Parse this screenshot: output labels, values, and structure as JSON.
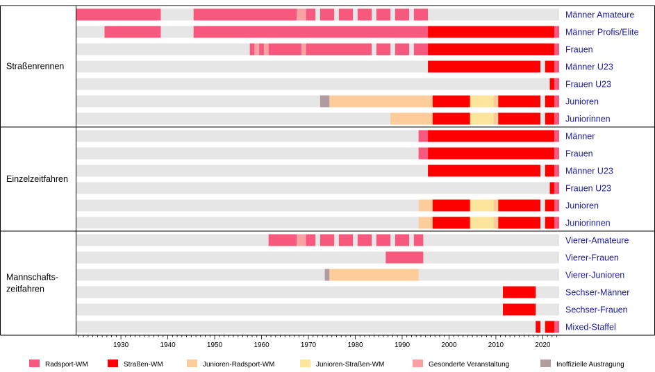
{
  "chart_data": {
    "type": "timeline",
    "x_range": [
      1921,
      2024
    ],
    "x_ticks": [
      1930,
      1940,
      1950,
      1960,
      1970,
      1980,
      1990,
      2000,
      2010,
      2020
    ],
    "colors": {
      "radsport": "#f7587e",
      "strassen": "#fe0000",
      "jun_radsport": "#fdcc9a",
      "jun_strassen": "#fde59c",
      "gesondert": "#f9a1a3",
      "inoffiziell": "#b39c9f",
      "none": "#e6e6e6"
    },
    "legend": [
      {
        "key": "radsport",
        "label": "Radsport-WM"
      },
      {
        "key": "strassen",
        "label": "Straßen-WM"
      },
      {
        "key": "jun_radsport",
        "label": "Junioren-Radsport-WM"
      },
      {
        "key": "jun_strassen",
        "label": "Junioren-Straßen-WM"
      },
      {
        "key": "gesondert",
        "label": "Gesonderte Veranstaltung"
      },
      {
        "key": "inoffiziell",
        "label": "Inoffizielle Austragung"
      }
    ],
    "groups": [
      {
        "label": "Straßenrennen",
        "rows": [
          {
            "label": "Männer Amateure",
            "segments": [
              {
                "from": 1921,
                "to": 1939,
                "color": "radsport"
              },
              {
                "from": 1946,
                "to": 1968,
                "color": "radsport"
              },
              {
                "from": 1968,
                "to": 1970,
                "color": "gesondert"
              },
              {
                "from": 1970,
                "to": 1972,
                "color": "radsport"
              },
              {
                "from": 1973,
                "to": 1976,
                "color": "radsport"
              },
              {
                "from": 1977,
                "to": 1980,
                "color": "radsport"
              },
              {
                "from": 1981,
                "to": 1984,
                "color": "radsport"
              },
              {
                "from": 1985,
                "to": 1988,
                "color": "radsport"
              },
              {
                "from": 1989,
                "to": 1992,
                "color": "radsport"
              },
              {
                "from": 1993,
                "to": 1996,
                "color": "radsport"
              }
            ]
          },
          {
            "label": "Männer Profis/Elite",
            "segments": [
              {
                "from": 1927,
                "to": 1939,
                "color": "radsport"
              },
              {
                "from": 1946,
                "to": 1996,
                "color": "radsport"
              },
              {
                "from": 1996,
                "to": 2023,
                "color": "strassen"
              },
              {
                "from": 2023,
                "to": 2024,
                "color": "radsport"
              }
            ]
          },
          {
            "label": "Frauen",
            "segments": [
              {
                "from": 1958,
                "to": 1959,
                "color": "radsport"
              },
              {
                "from": 1959,
                "to": 1960,
                "color": "gesondert"
              },
              {
                "from": 1960,
                "to": 1961,
                "color": "radsport"
              },
              {
                "from": 1961,
                "to": 1962,
                "color": "gesondert"
              },
              {
                "from": 1962,
                "to": 1969,
                "color": "radsport"
              },
              {
                "from": 1969,
                "to": 1970,
                "color": "gesondert"
              },
              {
                "from": 1970,
                "to": 1984,
                "color": "radsport"
              },
              {
                "from": 1985,
                "to": 1988,
                "color": "radsport"
              },
              {
                "from": 1989,
                "to": 1992,
                "color": "radsport"
              },
              {
                "from": 1993,
                "to": 1996,
                "color": "radsport"
              },
              {
                "from": 1996,
                "to": 2023,
                "color": "strassen"
              },
              {
                "from": 2023,
                "to": 2024,
                "color": "radsport"
              }
            ]
          },
          {
            "label": "Männer U23",
            "segments": [
              {
                "from": 1996,
                "to": 2020,
                "color": "strassen"
              },
              {
                "from": 2021,
                "to": 2023,
                "color": "strassen"
              },
              {
                "from": 2023,
                "to": 2024,
                "color": "radsport"
              }
            ]
          },
          {
            "label": "Frauen U23",
            "segments": [
              {
                "from": 2022,
                "to": 2023,
                "color": "strassen"
              },
              {
                "from": 2023,
                "to": 2024,
                "color": "radsport"
              }
            ]
          },
          {
            "label": "Junioren",
            "segments": [
              {
                "from": 1973,
                "to": 1975,
                "color": "inoffiziell"
              },
              {
                "from": 1975,
                "to": 1997,
                "color": "jun_radsport"
              },
              {
                "from": 1997,
                "to": 2005,
                "color": "strassen"
              },
              {
                "from": 2005,
                "to": 2010,
                "color": "jun_strassen"
              },
              {
                "from": 2010,
                "to": 2011,
                "color": "jun_radsport"
              },
              {
                "from": 2011,
                "to": 2020,
                "color": "strassen"
              },
              {
                "from": 2021,
                "to": 2023,
                "color": "strassen"
              },
              {
                "from": 2023,
                "to": 2024,
                "color": "radsport"
              }
            ]
          },
          {
            "label": "Juniorinnen",
            "segments": [
              {
                "from": 1988,
                "to": 1997,
                "color": "jun_radsport"
              },
              {
                "from": 1997,
                "to": 2005,
                "color": "strassen"
              },
              {
                "from": 2005,
                "to": 2010,
                "color": "jun_strassen"
              },
              {
                "from": 2010,
                "to": 2011,
                "color": "jun_radsport"
              },
              {
                "from": 2011,
                "to": 2020,
                "color": "strassen"
              },
              {
                "from": 2021,
                "to": 2023,
                "color": "strassen"
              },
              {
                "from": 2023,
                "to": 2024,
                "color": "radsport"
              }
            ]
          }
        ]
      },
      {
        "label": "Einzelzeitfahren",
        "rows": [
          {
            "label": "Männer",
            "segments": [
              {
                "from": 1994,
                "to": 1996,
                "color": "radsport"
              },
              {
                "from": 1996,
                "to": 2023,
                "color": "strassen"
              },
              {
                "from": 2023,
                "to": 2024,
                "color": "radsport"
              }
            ]
          },
          {
            "label": "Frauen",
            "segments": [
              {
                "from": 1994,
                "to": 1996,
                "color": "radsport"
              },
              {
                "from": 1996,
                "to": 2023,
                "color": "strassen"
              },
              {
                "from": 2023,
                "to": 2024,
                "color": "radsport"
              }
            ]
          },
          {
            "label": "Männer U23",
            "segments": [
              {
                "from": 1996,
                "to": 2020,
                "color": "strassen"
              },
              {
                "from": 2021,
                "to": 2023,
                "color": "strassen"
              },
              {
                "from": 2023,
                "to": 2024,
                "color": "radsport"
              }
            ]
          },
          {
            "label": "Frauen U23",
            "segments": [
              {
                "from": 2022,
                "to": 2023,
                "color": "strassen"
              },
              {
                "from": 2023,
                "to": 2024,
                "color": "radsport"
              }
            ]
          },
          {
            "label": "Junioren",
            "segments": [
              {
                "from": 1994,
                "to": 1997,
                "color": "jun_radsport"
              },
              {
                "from": 1997,
                "to": 2005,
                "color": "strassen"
              },
              {
                "from": 2005,
                "to": 2010,
                "color": "jun_strassen"
              },
              {
                "from": 2010,
                "to": 2011,
                "color": "jun_radsport"
              },
              {
                "from": 2011,
                "to": 2020,
                "color": "strassen"
              },
              {
                "from": 2021,
                "to": 2023,
                "color": "strassen"
              },
              {
                "from": 2023,
                "to": 2024,
                "color": "radsport"
              }
            ]
          },
          {
            "label": "Juniorinnen",
            "segments": [
              {
                "from": 1994,
                "to": 1997,
                "color": "jun_radsport"
              },
              {
                "from": 1997,
                "to": 2005,
                "color": "strassen"
              },
              {
                "from": 2005,
                "to": 2010,
                "color": "jun_strassen"
              },
              {
                "from": 2010,
                "to": 2011,
                "color": "jun_radsport"
              },
              {
                "from": 2011,
                "to": 2020,
                "color": "strassen"
              },
              {
                "from": 2021,
                "to": 2023,
                "color": "strassen"
              },
              {
                "from": 2023,
                "to": 2024,
                "color": "radsport"
              }
            ]
          }
        ]
      },
      {
        "label": "Mannschafts-\nzeitfahren",
        "rows": [
          {
            "label": "Vierer-Amateure",
            "segments": [
              {
                "from": 1962,
                "to": 1968,
                "color": "radsport"
              },
              {
                "from": 1968,
                "to": 1970,
                "color": "gesondert"
              },
              {
                "from": 1970,
                "to": 1972,
                "color": "radsport"
              },
              {
                "from": 1973,
                "to": 1976,
                "color": "radsport"
              },
              {
                "from": 1977,
                "to": 1980,
                "color": "radsport"
              },
              {
                "from": 1981,
                "to": 1984,
                "color": "radsport"
              },
              {
                "from": 1985,
                "to": 1988,
                "color": "radsport"
              },
              {
                "from": 1989,
                "to": 1992,
                "color": "radsport"
              },
              {
                "from": 1993,
                "to": 1995,
                "color": "radsport"
              }
            ]
          },
          {
            "label": "Vierer-Frauen",
            "segments": [
              {
                "from": 1987,
                "to": 1995,
                "color": "radsport"
              }
            ]
          },
          {
            "label": "Vierer-Junioren",
            "segments": [
              {
                "from": 1974,
                "to": 1975,
                "color": "inoffiziell"
              },
              {
                "from": 1975,
                "to": 1994,
                "color": "jun_radsport"
              }
            ]
          },
          {
            "label": "Sechser-Männer",
            "segments": [
              {
                "from": 2012,
                "to": 2019,
                "color": "strassen"
              }
            ]
          },
          {
            "label": "Sechser-Frauen",
            "segments": [
              {
                "from": 2012,
                "to": 2019,
                "color": "strassen"
              }
            ]
          },
          {
            "label": "Mixed-Staffel",
            "segments": [
              {
                "from": 2019,
                "to": 2020,
                "color": "strassen"
              },
              {
                "from": 2021,
                "to": 2023,
                "color": "strassen"
              },
              {
                "from": 2023,
                "to": 2024,
                "color": "radsport"
              }
            ]
          }
        ]
      }
    ]
  }
}
